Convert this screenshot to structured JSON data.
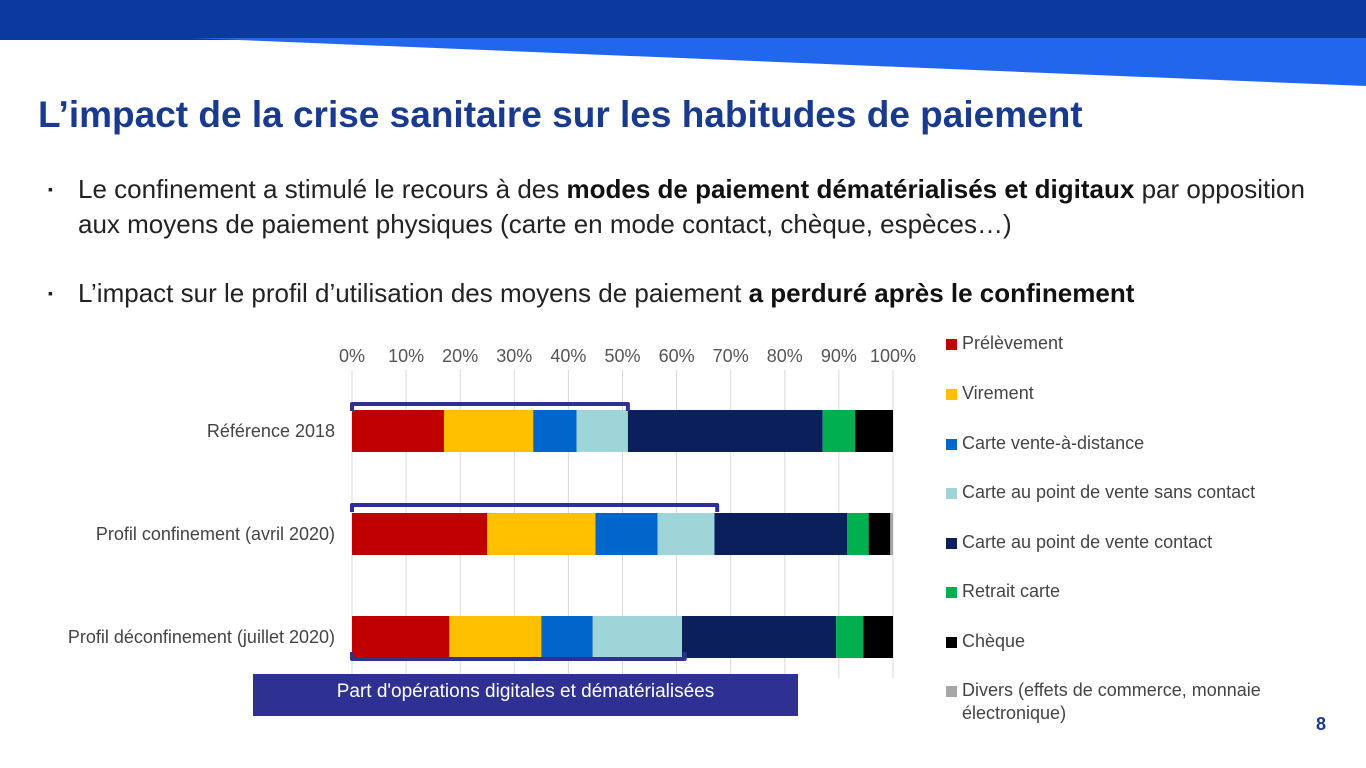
{
  "slide": {
    "title": "L’impact de la crise sanitaire sur les habitudes de paiement",
    "bullets": [
      {
        "marker": "▪",
        "parts": [
          {
            "text": "Le confinement a stimulé le recours à des ",
            "bold": false
          },
          {
            "text": "modes de paiement dématérialisés et digitaux",
            "bold": true
          },
          {
            "text": " par opposition aux moyens de paiement physiques (carte en mode contact, chèque, espèces…)",
            "bold": false
          }
        ]
      },
      {
        "marker": "▪",
        "parts": [
          {
            "text": "L’impact sur le profil d’utilisation des moyens de paiement ",
            "bold": false
          },
          {
            "text": "a perduré après le confinement",
            "bold": true
          }
        ]
      }
    ],
    "band_label": "Part d'opérations digitales et dématérialisées",
    "page_number": "8",
    "colors": {
      "title": "#1a3a8f",
      "banner_dark": "#0a3a9e",
      "banner_light": "#2266ee",
      "band": "#2e3192",
      "bracket": "#2e3192"
    }
  },
  "chart_data": {
    "type": "bar",
    "orientation": "horizontal",
    "stacked": true,
    "categories": [
      "Référence 2018",
      "Profil confinement (avril 2020)",
      "Profil déconfinement (juillet 2020)"
    ],
    "x_tick_labels": [
      "0%",
      "10%",
      "20%",
      "30%",
      "40%",
      "50%",
      "60%",
      "70%",
      "80%",
      "90%",
      "100%"
    ],
    "xlim": [
      0,
      100
    ],
    "x_axis_position": "top",
    "grid": true,
    "legend_position": "right",
    "series": [
      {
        "name": "Prélèvement",
        "color": "#c00000",
        "values": [
          17,
          25,
          18
        ]
      },
      {
        "name": "Virement",
        "color": "#ffc000",
        "values": [
          16.5,
          20,
          17
        ]
      },
      {
        "name": "Carte vente-à-distance",
        "color": "#0066cc",
        "values": [
          8,
          11.5,
          9.5
        ]
      },
      {
        "name": "Carte au point de vente sans contact",
        "color": "#9fd5d8",
        "values": [
          9.5,
          10.5,
          16.5
        ]
      },
      {
        "name": "Carte au point de vente contact",
        "color": "#0b1f5c",
        "values": [
          36,
          24.5,
          28.5
        ]
      },
      {
        "name": "Retrait carte",
        "color": "#00b050",
        "values": [
          6,
          4,
          5
        ]
      },
      {
        "name": "Chèque",
        "color": "#000000",
        "values": [
          7,
          4,
          5.5
        ]
      },
      {
        "name": "Divers (effets de commerce, monnaie électronique)",
        "color": "#a6a6a6",
        "values": [
          1,
          1,
          0.5
        ]
      }
    ],
    "digital_share_brackets": [
      51,
      67.5,
      61.5
    ]
  }
}
